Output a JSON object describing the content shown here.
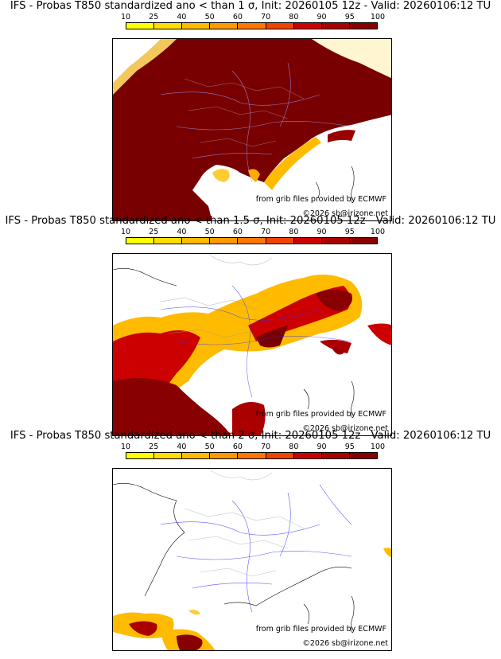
{
  "colorbar": {
    "ticks": [
      "10",
      "25",
      "40",
      "50",
      "60",
      "70",
      "80",
      "90",
      "95",
      "100"
    ],
    "colors": [
      "#ffff00",
      "#ffdd00",
      "#ffbb00",
      "#ff9900",
      "#ff7700",
      "#ee4400",
      "#cc0000",
      "#aa0000",
      "#880000"
    ]
  },
  "panels": [
    {
      "title": "IFS - Probas T850  standardized ano < than 1 σ, Init: 20260105 12z - Valid: 20260106:12 TU",
      "source": "from grib files provided by ECMWF",
      "copyright": "©2026 sb@irizone.net",
      "level": "high"
    },
    {
      "title": "IFS - Probas T850  standardized ano < than 1.5 σ, Init: 20260105 12z - Valid: 20260106:12 TU",
      "source": "from grib files provided by ECMWF",
      "copyright": "©2026 sb@irizone.net",
      "level": "medium"
    },
    {
      "title": "IFS - Probas T850  standardized ano < than 2 σ, Init: 20260105 12z - Valid: 20260106:12 TU",
      "source": "from grib files provided by ECMWF",
      "copyright": "©2026 sb@irizone.net",
      "level": "low"
    }
  ]
}
